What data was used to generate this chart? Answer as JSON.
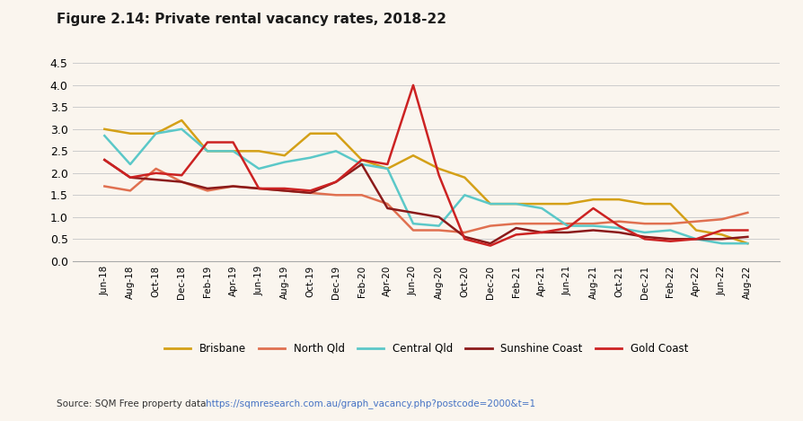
{
  "title": "Figure 2.14: Private rental vacancy rates, 2018-22",
  "source_text": "Source: SQM Free property data ",
  "source_url": "https://sqmresearch.com.au/graph_vacancy.php?postcode=2000&t=1",
  "background_color": "#faf5ee",
  "x_labels": [
    "Jun-18",
    "Aug-18",
    "Oct-18",
    "Dec-18",
    "Feb-19",
    "Apr-19",
    "Jun-19",
    "Aug-19",
    "Oct-19",
    "Dec-19",
    "Feb-20",
    "Apr-20",
    "Jun-20",
    "Aug-20",
    "Oct-20",
    "Dec-20",
    "Feb-21",
    "Apr-21",
    "Jun-21",
    "Aug-21",
    "Oct-21",
    "Dec-21",
    "Feb-22",
    "Apr-22",
    "Jun-22",
    "Aug-22"
  ],
  "series": {
    "Brisbane": {
      "color": "#d4a017",
      "values": [
        3.0,
        2.9,
        2.9,
        3.2,
        2.5,
        2.5,
        2.5,
        2.4,
        2.9,
        2.9,
        2.3,
        2.1,
        2.4,
        2.1,
        1.9,
        1.3,
        1.3,
        1.3,
        1.3,
        1.4,
        1.4,
        1.3,
        1.3,
        0.7,
        0.6,
        0.4
      ]
    },
    "North Qld": {
      "color": "#e07050",
      "values": [
        1.7,
        1.6,
        2.1,
        1.8,
        1.6,
        1.7,
        1.65,
        1.6,
        1.55,
        1.5,
        1.5,
        1.3,
        0.7,
        0.7,
        0.65,
        0.8,
        0.85,
        0.85,
        0.85,
        0.85,
        0.9,
        0.85,
        0.85,
        0.9,
        0.95,
        1.1
      ]
    },
    "Central Qld": {
      "color": "#5bc8c8",
      "values": [
        2.85,
        2.2,
        2.9,
        3.0,
        2.5,
        2.5,
        2.1,
        2.25,
        2.35,
        2.5,
        2.2,
        2.1,
        0.85,
        0.8,
        1.5,
        1.3,
        1.3,
        1.2,
        0.8,
        0.8,
        0.75,
        0.65,
        0.7,
        0.5,
        0.4,
        0.4
      ]
    },
    "Sunshine Coast": {
      "color": "#8b1a1a",
      "values": [
        2.3,
        1.9,
        1.85,
        1.8,
        1.65,
        1.7,
        1.65,
        1.6,
        1.55,
        1.8,
        2.2,
        1.2,
        1.1,
        1.0,
        0.55,
        0.4,
        0.75,
        0.65,
        0.65,
        0.7,
        0.65,
        0.55,
        0.5,
        0.5,
        0.5,
        0.55
      ]
    },
    "Gold Coast": {
      "color": "#cc2222",
      "values": [
        2.3,
        1.9,
        2.0,
        1.95,
        2.7,
        2.7,
        1.65,
        1.65,
        1.6,
        1.8,
        2.3,
        2.2,
        4.0,
        1.95,
        0.5,
        0.35,
        0.6,
        0.65,
        0.75,
        1.2,
        0.8,
        0.5,
        0.45,
        0.5,
        0.7,
        0.7
      ]
    }
  },
  "ylim": [
    0,
    4.5
  ],
  "yticks": [
    0,
    0.5,
    1,
    1.5,
    2,
    2.5,
    3,
    3.5,
    4,
    4.5
  ],
  "legend_order": [
    "Brisbane",
    "North Qld",
    "Central Qld",
    "Sunshine Coast",
    "Gold Coast"
  ]
}
